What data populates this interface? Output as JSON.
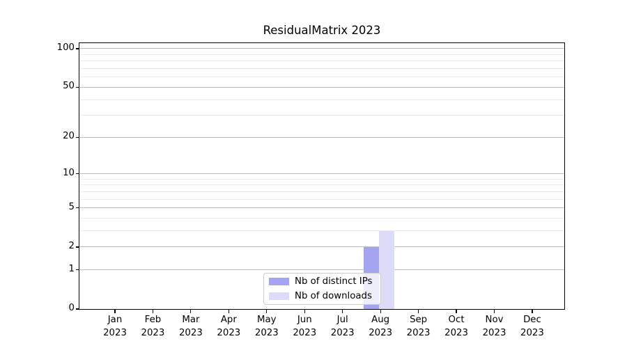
{
  "chart": {
    "title": "ResidualMatrix 2023",
    "chart_data": {
      "type": "bar",
      "categories": [
        "Jan",
        "Feb",
        "Mar",
        "Apr",
        "May",
        "Jun",
        "Jul",
        "Aug",
        "Sep",
        "Oct",
        "Nov",
        "Dec"
      ],
      "category_year": "2023",
      "series": [
        {
          "name": "Nb of distinct IPs",
          "color": "#a4a4f0",
          "values": [
            0,
            0,
            0,
            0,
            0,
            0,
            0,
            2,
            0,
            0,
            0,
            0
          ]
        },
        {
          "name": "Nb of downloads",
          "color": "#dcdcf8",
          "values": [
            0,
            0,
            0,
            0,
            0,
            0,
            0,
            3,
            0,
            0,
            0,
            0
          ]
        }
      ],
      "title": "ResidualMatrix 2023",
      "xlabel": "",
      "ylabel": "",
      "y_axis": {
        "scale": "log10(1+v)",
        "major_ticks": [
          0,
          1,
          2,
          5,
          10,
          20,
          50,
          100
        ],
        "minor_ticks": [
          3,
          4,
          6,
          7,
          8,
          9,
          30,
          40,
          60,
          70,
          80,
          90
        ],
        "ylim": [
          0,
          110
        ]
      },
      "grid": "on",
      "legend_position": "lower center",
      "colors": {
        "major_grid": "#bdbdbd",
        "minor_grid": "#eaeaea",
        "axis_frame": "#000000",
        "legend_border": "#cccccc"
      }
    }
  }
}
